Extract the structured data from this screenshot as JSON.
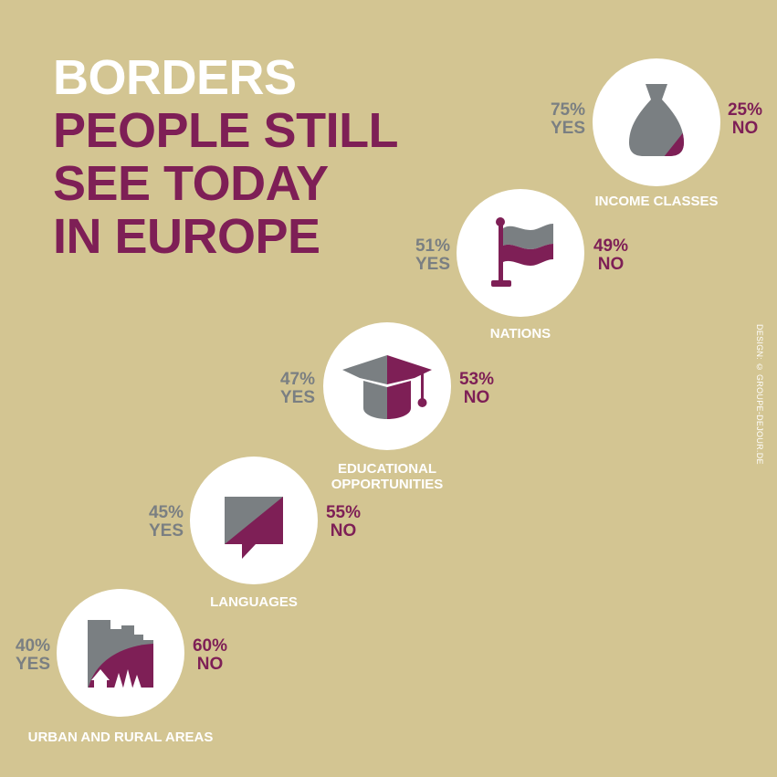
{
  "title": {
    "line1": "BORDERS",
    "line2": [
      "PEOPLE STILL",
      "SEE TODAY",
      "IN EUROPE"
    ]
  },
  "credit": "DESIGN: © GROUPE-DEJOUR.DE",
  "colors": {
    "background": "#d3c592",
    "yes": "#7a7f82",
    "no": "#7e1f56",
    "circle": "#ffffff"
  },
  "chart_data": {
    "type": "pie",
    "series_labels": {
      "yes": "YES",
      "no": "NO"
    },
    "categories": [
      "INCOME CLASSES",
      "NATIONS",
      "EDUCATIONAL OPPORTUNITIES",
      "LANGUAGES",
      "URBAN AND RURAL AREAS"
    ],
    "items": [
      {
        "category": "INCOME CLASSES",
        "icon": "money-bag-icon",
        "yes": 75,
        "no": 25,
        "yes_text": "75%",
        "no_text": "25%"
      },
      {
        "category": "NATIONS",
        "icon": "flag-icon",
        "yes": 51,
        "no": 49,
        "yes_text": "51%",
        "no_text": "49%"
      },
      {
        "category": "EDUCATIONAL OPPORTUNITIES",
        "label_lines": [
          "EDUCATIONAL",
          "OPPORTUNITIES"
        ],
        "icon": "graduation-cap-icon",
        "yes": 47,
        "no": 53,
        "yes_text": "47%",
        "no_text": "53%"
      },
      {
        "category": "LANGUAGES",
        "icon": "speech-bubble-icon",
        "yes": 45,
        "no": 55,
        "yes_text": "45%",
        "no_text": "55%"
      },
      {
        "category": "URBAN AND RURAL AREAS",
        "icon": "city-countryside-icon",
        "yes": 40,
        "no": 60,
        "yes_text": "40%",
        "no_text": "60%"
      }
    ]
  }
}
